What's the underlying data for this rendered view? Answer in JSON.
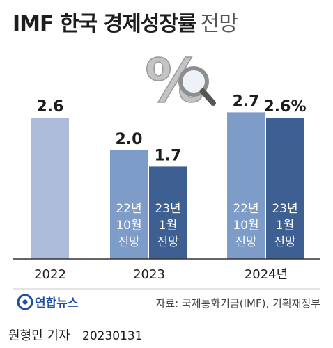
{
  "title": {
    "main": "IMF 한국 경제성장률",
    "sub": "전망"
  },
  "colors": {
    "light": "#adbcd8",
    "mid": "#7e9cc8",
    "dark": "#3e5f92",
    "text": "#1d1d1d",
    "source": "#444444"
  },
  "decoration": {
    "percent_symbol": "%",
    "icon": "magnifier-icon"
  },
  "chart_data": {
    "type": "bar",
    "ylim": [
      0,
      3.0
    ],
    "title": "IMF 한국 경제성장률 전망",
    "categories": [
      "2022",
      "2023",
      "2024년"
    ],
    "bars": [
      {
        "category": "2022",
        "value": 2.6,
        "label": "2.6",
        "color_key": "light",
        "inner_text": []
      },
      {
        "category": "2023",
        "value": 2.0,
        "label": "2.0",
        "color_key": "mid",
        "inner_text": [
          "22년",
          "10월",
          "전망"
        ]
      },
      {
        "category": "2023",
        "value": 1.7,
        "label": "1.7",
        "color_key": "dark",
        "inner_text": [
          "23년",
          "1월",
          "전망"
        ]
      },
      {
        "category": "2024년",
        "value": 2.7,
        "label": "2.7",
        "color_key": "mid",
        "inner_text": [
          "22년",
          "10월",
          "전망"
        ]
      },
      {
        "category": "2024년",
        "value": 2.6,
        "label": "2.6%",
        "color_key": "dark",
        "inner_text": [
          "23년",
          "1월",
          "전망"
        ]
      }
    ]
  },
  "footer": {
    "logo_text": "연합뉴스",
    "source": "자료: 국제통화기금(IMF), 기획재정부",
    "credit": "원형민 기자",
    "date": "20230131"
  }
}
